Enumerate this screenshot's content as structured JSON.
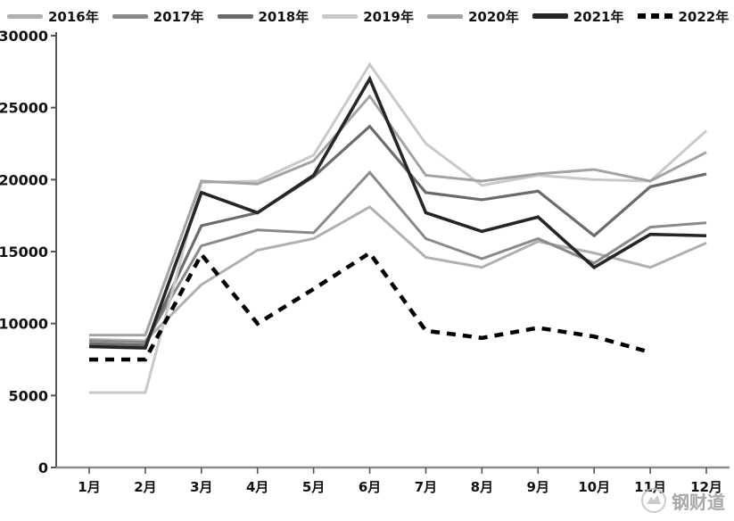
{
  "chart_data": {
    "type": "line",
    "title": "",
    "xlabel": "",
    "ylabel": "",
    "categories": [
      "1月",
      "2月",
      "3月",
      "4月",
      "5月",
      "6月",
      "7月",
      "8月",
      "9月",
      "10月",
      "11月",
      "12月"
    ],
    "yticks": [
      0,
      5000,
      10000,
      15000,
      20000,
      25000,
      30000
    ],
    "ylim": [
      0,
      30000
    ],
    "grid": false,
    "legend_position": "top",
    "series": [
      {
        "name": "2016年",
        "color": "#b0b0b0",
        "dash": "",
        "width": 3,
        "values": [
          8900,
          8800,
          12700,
          15100,
          15900,
          18100,
          14600,
          13900,
          15700,
          14900,
          13900,
          15600
        ]
      },
      {
        "name": "2017年",
        "color": "#8a8a8a",
        "dash": "",
        "width": 3,
        "values": [
          8800,
          8700,
          15400,
          16500,
          16300,
          20500,
          15900,
          14500,
          15900,
          14200,
          16700,
          17000
        ]
      },
      {
        "name": "2018年",
        "color": "#6b6b6b",
        "dash": "",
        "width": 3.2,
        "values": [
          8600,
          8500,
          16800,
          17700,
          20200,
          23700,
          19100,
          18600,
          19200,
          16100,
          19500,
          20400
        ]
      },
      {
        "name": "2019年",
        "color": "#c9c9c9",
        "dash": "",
        "width": 3,
        "values": [
          5200,
          5200,
          19800,
          19900,
          21700,
          28000,
          22500,
          19600,
          20300,
          20000,
          19900,
          23400
        ]
      },
      {
        "name": "2020年",
        "color": "#a3a3a3",
        "dash": "",
        "width": 3,
        "values": [
          9200,
          9200,
          19900,
          19700,
          21300,
          25800,
          20300,
          19900,
          20400,
          20700,
          19900,
          21900
        ]
      },
      {
        "name": "2021年",
        "color": "#262626",
        "dash": "",
        "width": 3.6,
        "values": [
          8400,
          8300,
          19100,
          17700,
          20300,
          27000,
          17700,
          16400,
          17400,
          13900,
          16200,
          16100
        ]
      },
      {
        "name": "2022年",
        "color": "#000000",
        "dash": "10 8",
        "width": 4.5,
        "values": [
          7500,
          7500,
          14800,
          10000,
          12400,
          14900,
          9500,
          9000,
          9700,
          9100,
          8000,
          null
        ]
      }
    ]
  },
  "watermark": {
    "text": "钢财道",
    "logo": "brand-badge-icon"
  }
}
